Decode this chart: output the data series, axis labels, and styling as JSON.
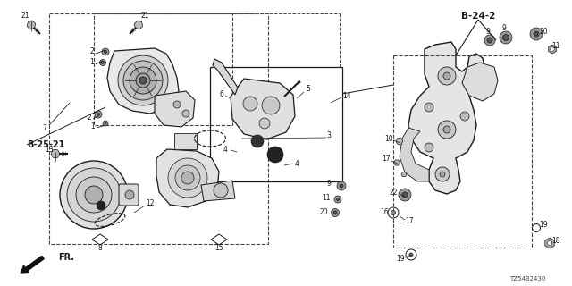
{
  "bg_color": "#ffffff",
  "line_color": "#1a1a1a",
  "dashed_color": "#444444",
  "label_B242": "B-24-2",
  "label_B2521": "B-25-21",
  "label_FR": "FR.",
  "diagram_id": "TZ54B2430",
  "figsize": [
    6.4,
    3.2
  ],
  "dpi": 100
}
